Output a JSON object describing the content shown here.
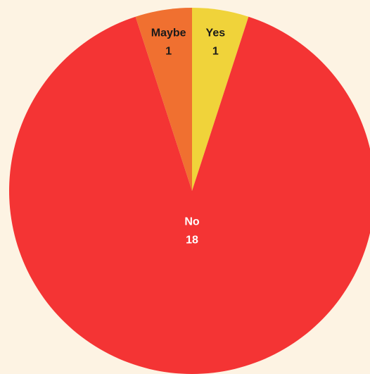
{
  "chart_data": {
    "type": "pie",
    "categories": [
      "Yes",
      "No",
      "Maybe"
    ],
    "values": [
      1,
      18,
      1
    ],
    "colors": [
      "#f0d33a",
      "#f43434",
      "#f07030"
    ],
    "label_colors": [
      "#1a1a1a",
      "#ffffff",
      "#1a1a1a"
    ],
    "start_angle": 0,
    "direction": "clockwise"
  }
}
